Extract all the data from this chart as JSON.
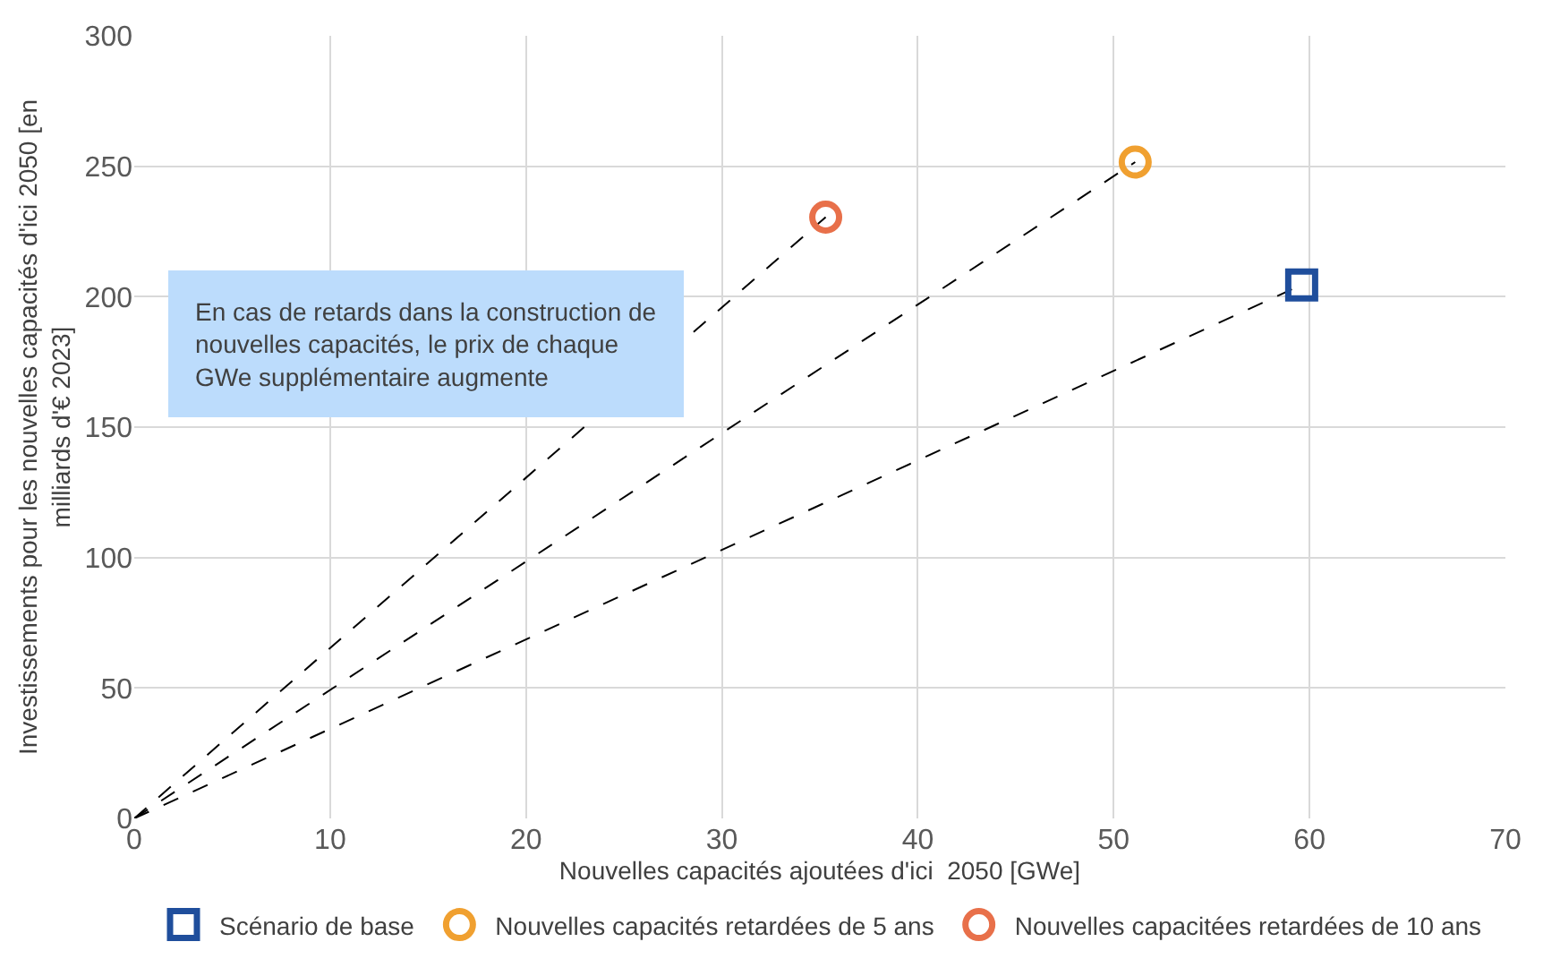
{
  "chart_data": {
    "type": "scatter",
    "xlabel": "Nouvelles capacités ajoutées d'ici  2050 [GWe]",
    "ylabel": "Investissements pour les nouvelles capacités d'ici 2050 [en\nmilliards d'€ 2023]",
    "series": [
      {
        "type": "line",
        "color": "#000000",
        "line_style": "dashed",
        "marker": "none",
        "x": [
          0,
          35.3
        ],
        "values": [
          0,
          230.5
        ]
      },
      {
        "type": "line",
        "color": "#000000",
        "line_style": "dashed",
        "marker": "none",
        "x": [
          0,
          51.1
        ],
        "values": [
          0,
          251.6
        ]
      },
      {
        "type": "line",
        "color": "#000000",
        "line_style": "dashed",
        "marker": "none",
        "x": [
          0,
          59.6
        ],
        "values": [
          0,
          204.5
        ]
      },
      {
        "name": "Scénario de base",
        "color": "#1f4e9c",
        "marker": "square",
        "x": [
          59.6
        ],
        "values": [
          204.5
        ]
      },
      {
        "name": "Nouvelles capacités retardées de 5 ans",
        "color": "#f0a030",
        "marker": "circle",
        "x": [
          51.1
        ],
        "values": [
          251.6
        ]
      },
      {
        "name": "Nouvelles capacitées retardées de 10 ans",
        "color": "#e8704a",
        "marker": "circle",
        "x": [
          35.3
        ],
        "values": [
          230.5
        ]
      }
    ],
    "xlim": [
      0,
      70
    ],
    "xticks": [
      0,
      10,
      20,
      30,
      40,
      50,
      60,
      70
    ],
    "ylim": [
      0,
      300
    ],
    "yticks": [
      0,
      50,
      100,
      150,
      200,
      250,
      300
    ],
    "grid": true,
    "legend": "bottom",
    "annotations": [
      "En cas de retards dans la construction de\nnouvelles capacités, le prix de chaque\nGWe supplémentaire augmente"
    ]
  }
}
